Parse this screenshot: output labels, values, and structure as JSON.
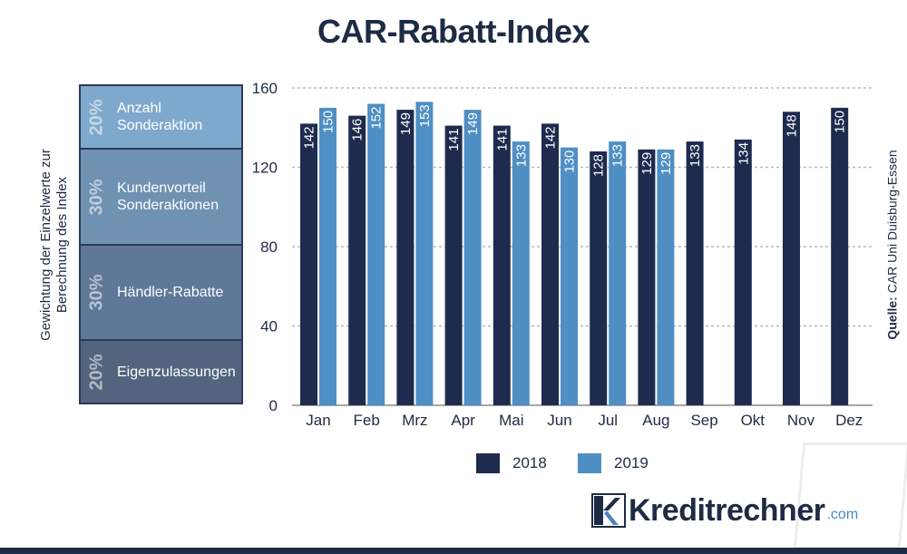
{
  "title": "CAR-Rabatt-Index",
  "weights_axis_label_line1": "Gewichtung der Einzelwerte zur",
  "weights_axis_label_line2": "Berechnung des Index",
  "weights": [
    {
      "pct": "20%",
      "label_line1": "Anzahl",
      "label_line2": "Sonderaktion",
      "color": "#7fa9cc"
    },
    {
      "pct": "30%",
      "label_line1": "Kundenvorteil",
      "label_line2": "Sonderaktionen",
      "color": "#6f91b2"
    },
    {
      "pct": "30%",
      "label_line1": "Händler-Rabatte",
      "label_line2": "",
      "color": "#5f7898"
    },
    {
      "pct": "20%",
      "label_line1": "Eigenzulassungen",
      "label_line2": "",
      "color": "#53647e"
    }
  ],
  "source_label": "Quelle:",
  "source_text": "CAR Uni Duisburg-Essen",
  "logo_text": "Kreditrechner",
  "logo_domain": ".com",
  "chart_data": {
    "type": "bar",
    "categories": [
      "Jan",
      "Feb",
      "Mrz",
      "Apr",
      "Mai",
      "Jun",
      "Jul",
      "Aug",
      "Sep",
      "Okt",
      "Nov",
      "Dez"
    ],
    "series": [
      {
        "name": "2018",
        "color": "#1e2b4e",
        "values": [
          142,
          146,
          149,
          141,
          141,
          142,
          128,
          129,
          133,
          134,
          148,
          150
        ]
      },
      {
        "name": "2019",
        "color": "#4f8fc4",
        "values": [
          150,
          152,
          153,
          149,
          133,
          130,
          133,
          129,
          null,
          null,
          null,
          null
        ]
      }
    ],
    "ylim": [
      0,
      160
    ],
    "yticks": [
      0,
      40,
      80,
      120,
      160
    ],
    "grid": true,
    "legend_position": "bottom"
  }
}
